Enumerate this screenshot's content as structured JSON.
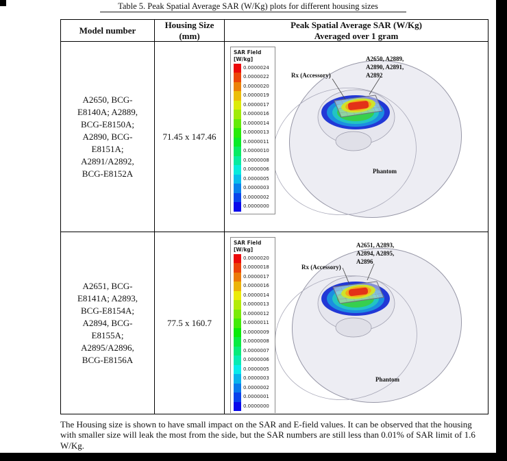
{
  "page": {
    "caption": "Table 5. Peak Spatial Average SAR (W/Kg) plots for different housing sizes",
    "footer_paragraph": "The Housing size is shown to have small impact on the SAR and E-field values. It can be observed that the housing with smaller size will leak the most from the side, but the SAR numbers are still less than 0.01% of SAR limit of 1.6 W/Kg."
  },
  "table": {
    "header": {
      "model": "Model number",
      "housing": "Housing Size\n(mm)",
      "sar": "Peak Spatial Average SAR (W/Kg)\nAveraged over 1 gram"
    }
  },
  "rows": [
    {
      "model": "A2650, BCG-\nE8140A; A2889,\nBCG-E8150A;\nA2890, BCG-\nE8151A;\nA2891/A2892,\nBCG-E8152A",
      "housing": "71.45 x 147.46",
      "plot": {
        "legend_title": "SAR Field",
        "legend_unit": "[W/kg]",
        "legend_values": [
          "0.0000024",
          "0.0000022",
          "0.0000020",
          "0.0000019",
          "0.0000017",
          "0.0000016",
          "0.0000014",
          "0.0000013",
          "0.0000011",
          "0.0000010",
          "0.0000008",
          "0.0000006",
          "0.0000005",
          "0.0000003",
          "0.0000002",
          "0.0000000"
        ],
        "rx_label": "Rx (Accessory)",
        "models_label": "A2650, A2889,\nA2890, A2891,\nA2892",
        "phantom_label": "Phantom"
      }
    },
    {
      "model": "A2651, BCG-\nE8141A; A2893,\nBCG-E8154A;\nA2894, BCG-\nE8155A;\nA2895/A2896,\nBCG-E8156A",
      "housing": "77.5 x 160.7",
      "plot": {
        "legend_title": "SAR Field",
        "legend_unit": "[W/kg]",
        "legend_values": [
          "0.0000020",
          "0.0000018",
          "0.0000017",
          "0.0000016",
          "0.0000014",
          "0.0000013",
          "0.0000012",
          "0.0000011",
          "0.0000009",
          "0.0000008",
          "0.0000007",
          "0.0000006",
          "0.0000005",
          "0.0000003",
          "0.0000002",
          "0.0000001",
          "0.0000000"
        ],
        "rx_label": "Rx (Accessory)",
        "models_label": "A2651, A2893,\nA2894, A2895,\nA2896",
        "phantom_label": "Phantom"
      }
    }
  ],
  "colors": {
    "scale_top": "#f20d0d",
    "scale_bottom": "#0d0df2",
    "phantom_fill": "#ededf3"
  }
}
